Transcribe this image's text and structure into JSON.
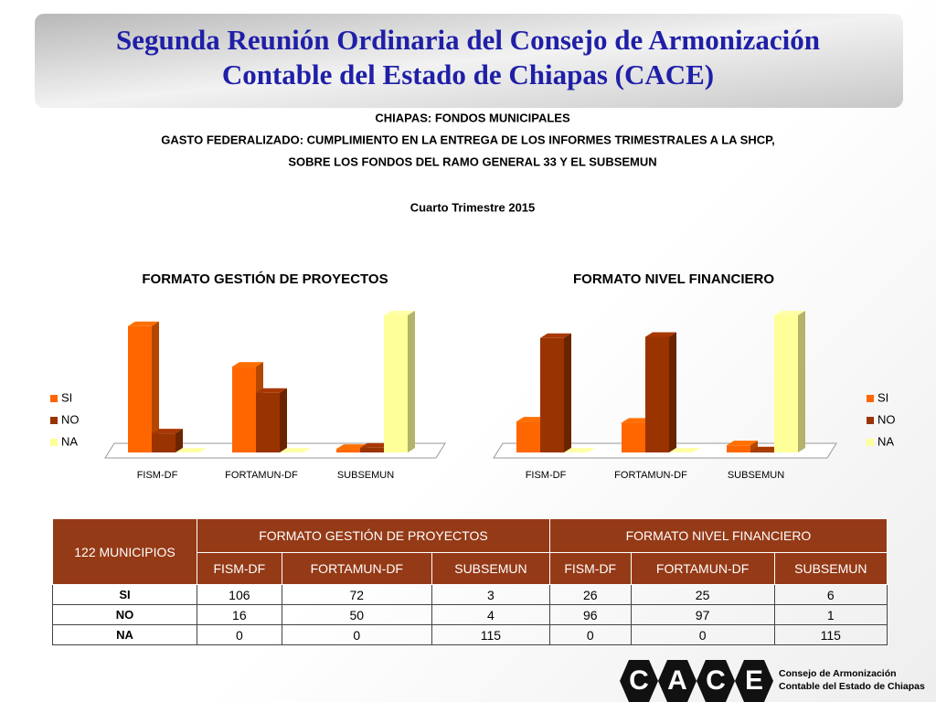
{
  "header": {
    "title_lines": [
      "Segunda Reunión Ordinaria del Consejo de Armonización",
      "Contable del Estado de Chiapas (CACE)"
    ],
    "subtitles": [
      "CHIAPAS: FONDOS MUNICIPALES",
      "GASTO FEDERALIZADO: CUMPLIMIENTO EN LA ENTREGA DE LOS INFORMES TRIMESTRALES A LA SHCP,",
      "SOBRE LOS FONDOS DEL RAMO GENERAL 33 Y EL SUBSEMUN"
    ],
    "period": "Cuarto Trimestre 2015"
  },
  "chart_data": [
    {
      "type": "bar3d",
      "title": "FORMATO GESTIÓN DE PROYECTOS",
      "categories": [
        "FISM-DF",
        "FORTAMUN-DF",
        "SUBSEMUN"
      ],
      "series": [
        {
          "name": "SI",
          "color": "#ff6600",
          "values": [
            106,
            72,
            3
          ]
        },
        {
          "name": "NO",
          "color": "#993300",
          "values": [
            16,
            50,
            4
          ]
        },
        {
          "name": "NA",
          "color": "#ffff99",
          "values": [
            0,
            0,
            115
          ]
        }
      ],
      "legend": "left"
    },
    {
      "type": "bar3d",
      "title": "FORMATO NIVEL FINANCIERO",
      "categories": [
        "FISM-DF",
        "FORTAMUN-DF",
        "SUBSEMUN"
      ],
      "series": [
        {
          "name": "SI",
          "color": "#ff6600",
          "values": [
            26,
            25,
            6
          ]
        },
        {
          "name": "NO",
          "color": "#993300",
          "values": [
            96,
            97,
            1
          ]
        },
        {
          "name": "NA",
          "color": "#ffff99",
          "values": [
            0,
            0,
            115
          ]
        }
      ],
      "legend": "right"
    }
  ],
  "table": {
    "corner": "122 MUNICIPIOS"
  },
  "logo": {
    "letters": [
      "C",
      "A",
      "C",
      "E"
    ],
    "lines": [
      "Consejo de Armonización",
      "Contable del Estado de Chiapas"
    ]
  }
}
